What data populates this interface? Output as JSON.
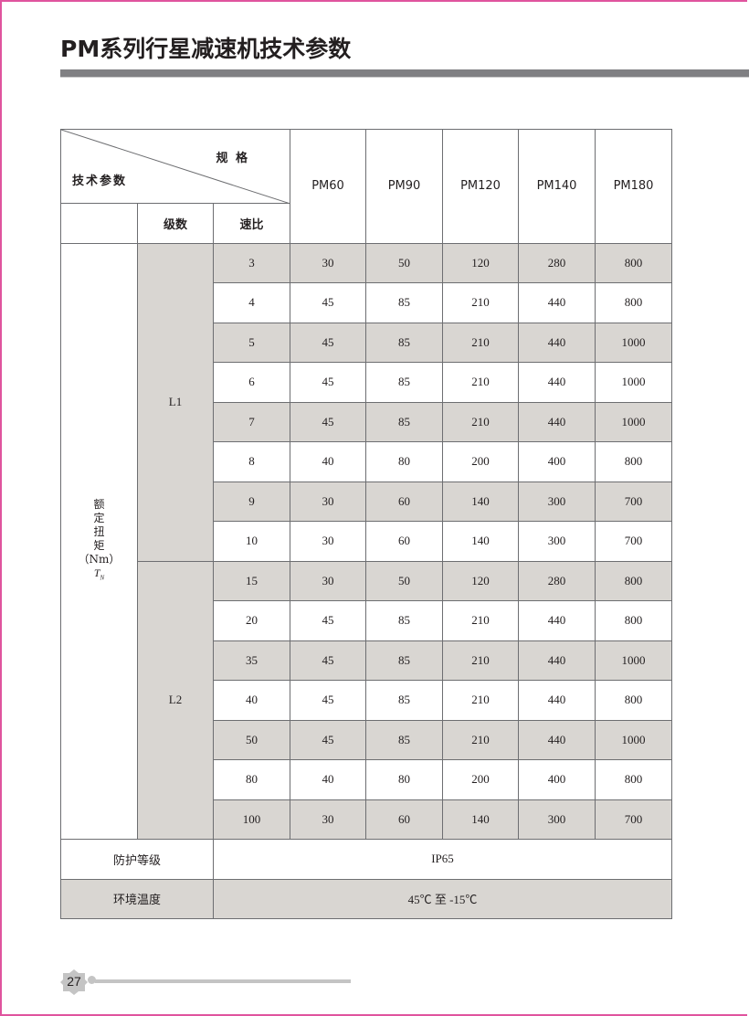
{
  "title": "PM系列行星减速机技术参数",
  "table": {
    "corner_top": "规 格",
    "corner_bottom": "技术参数",
    "stage_header": "级数",
    "ratio_header": "速比",
    "models": [
      "PM60",
      "PM90",
      "PM120",
      "PM140",
      "PM180"
    ],
    "param_label": [
      "额",
      "定",
      "扭",
      "矩",
      "（Nm）"
    ],
    "param_symbol": "T",
    "param_symbol_sub": "N",
    "groups": [
      {
        "stage": "L1",
        "rows": [
          {
            "ratio": "3",
            "values": [
              "30",
              "50",
              "120",
              "280",
              "800"
            ]
          },
          {
            "ratio": "4",
            "values": [
              "45",
              "85",
              "210",
              "440",
              "800"
            ]
          },
          {
            "ratio": "5",
            "values": [
              "45",
              "85",
              "210",
              "440",
              "1000"
            ]
          },
          {
            "ratio": "6",
            "values": [
              "45",
              "85",
              "210",
              "440",
              "1000"
            ]
          },
          {
            "ratio": "7",
            "values": [
              "45",
              "85",
              "210",
              "440",
              "1000"
            ]
          },
          {
            "ratio": "8",
            "values": [
              "40",
              "80",
              "200",
              "400",
              "800"
            ]
          },
          {
            "ratio": "9",
            "values": [
              "30",
              "60",
              "140",
              "300",
              "700"
            ]
          },
          {
            "ratio": "10",
            "values": [
              "30",
              "60",
              "140",
              "300",
              "700"
            ]
          }
        ]
      },
      {
        "stage": "L2",
        "rows": [
          {
            "ratio": "15",
            "values": [
              "30",
              "50",
              "120",
              "280",
              "800"
            ]
          },
          {
            "ratio": "20",
            "values": [
              "45",
              "85",
              "210",
              "440",
              "800"
            ]
          },
          {
            "ratio": "35",
            "values": [
              "45",
              "85",
              "210",
              "440",
              "1000"
            ]
          },
          {
            "ratio": "40",
            "values": [
              "45",
              "85",
              "210",
              "440",
              "800"
            ]
          },
          {
            "ratio": "50",
            "values": [
              "45",
              "85",
              "210",
              "440",
              "1000"
            ]
          },
          {
            "ratio": "80",
            "values": [
              "40",
              "80",
              "200",
              "400",
              "800"
            ]
          },
          {
            "ratio": "100",
            "values": [
              "30",
              "60",
              "140",
              "300",
              "700"
            ]
          }
        ]
      }
    ],
    "protection_label": "防护等级",
    "protection_value": "IP65",
    "temp_label": "环境温度",
    "temp_value": "45℃ 至 -15℃",
    "shade_color": "#d9d6d2"
  },
  "footer": {
    "page_number": "27"
  },
  "colors": {
    "frame": "#e0549e",
    "title_bar": "#808083"
  }
}
